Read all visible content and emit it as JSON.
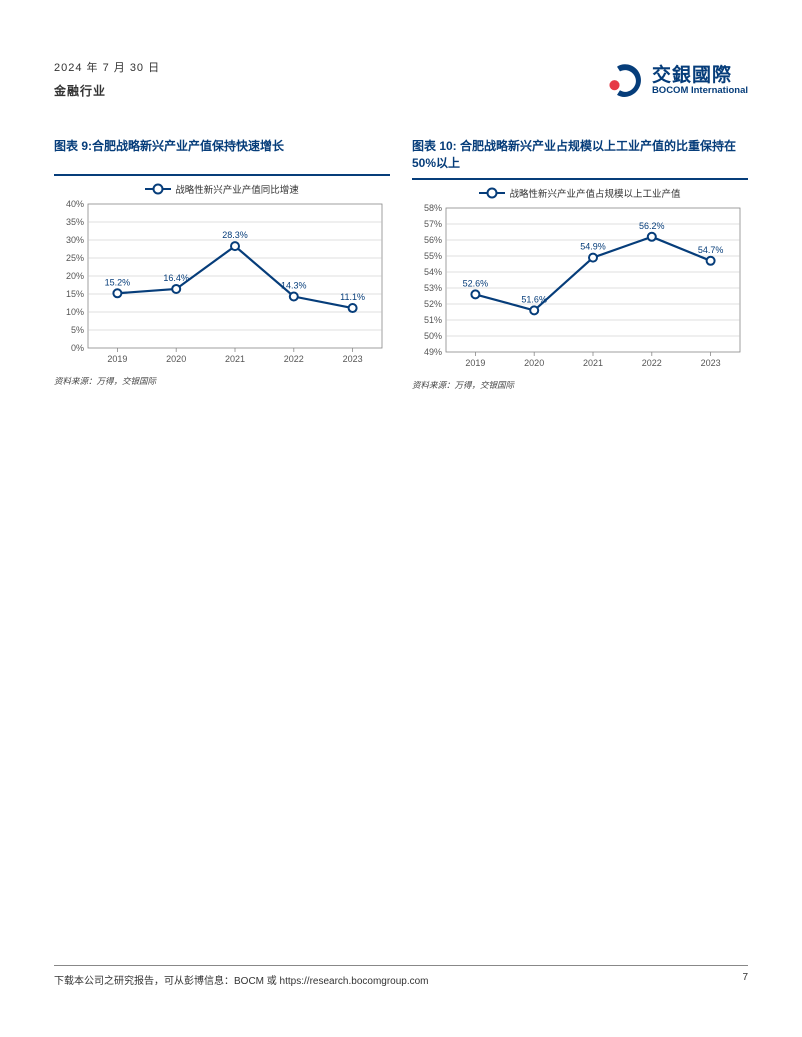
{
  "header": {
    "date": "2024 年 7 月 30 日",
    "sector": "金融行业",
    "logo_cn": "交銀國際",
    "logo_en": "BOCOM International"
  },
  "chart9": {
    "type": "line",
    "title": "图表 9:合肥战略新兴产业产值保持快速增长",
    "legend": "战略性新兴产业产值同比增速",
    "categories": [
      "2019",
      "2020",
      "2021",
      "2022",
      "2023"
    ],
    "values": [
      15.2,
      16.4,
      28.3,
      14.3,
      11.1
    ],
    "labels": [
      "15.2%",
      "16.4%",
      "28.3%",
      "14.3%",
      "11.1%"
    ],
    "ylim": [
      0,
      40
    ],
    "ytick_step": 5,
    "ytick_labels": [
      "0%",
      "5%",
      "10%",
      "15%",
      "20%",
      "25%",
      "30%",
      "35%",
      "40%"
    ],
    "line_color": "#063d7a",
    "marker_fill": "#ffffff",
    "grid_color": "#bfbfbf",
    "axis_color": "#888888",
    "source": "资料来源：万得，交银国际"
  },
  "chart10": {
    "type": "line",
    "title": "图表 10: 合肥战略新兴产业占规模以上工业产值的比重保持在 50%以上",
    "legend": "战略性新兴产业产值占规模以上工业产值",
    "categories": [
      "2019",
      "2020",
      "2021",
      "2022",
      "2023"
    ],
    "values": [
      52.6,
      51.6,
      54.9,
      56.2,
      54.7
    ],
    "labels": [
      "52.6%",
      "51.6%",
      "54.9%",
      "56.2%",
      "54.7%"
    ],
    "ylim": [
      49,
      58
    ],
    "ytick_step": 1,
    "ytick_labels": [
      "49%",
      "50%",
      "51%",
      "52%",
      "53%",
      "54%",
      "55%",
      "56%",
      "57%",
      "58%"
    ],
    "line_color": "#063d7a",
    "marker_fill": "#ffffff",
    "grid_color": "#bfbfbf",
    "axis_color": "#888888",
    "source": "资料来源：万得，交银国际"
  },
  "footer": {
    "text": "下载本公司之研究报告，可从彭博信息：BOCM  或  https://research.bocomgroup.com",
    "page": "7"
  }
}
